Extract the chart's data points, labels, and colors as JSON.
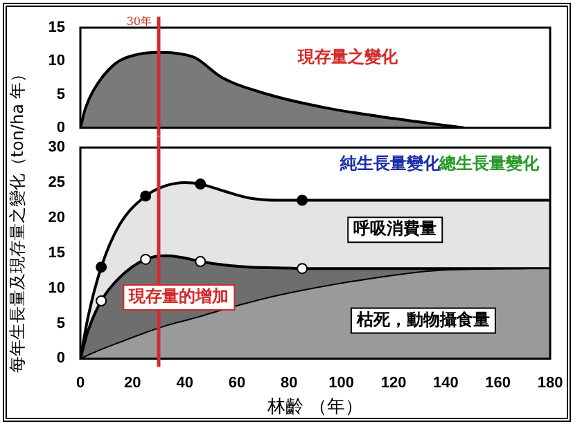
{
  "chart_data": [
    {
      "type": "area",
      "xlim": [
        0,
        180
      ],
      "ylim": [
        0,
        15
      ],
      "yticks": [
        0,
        5,
        10,
        15
      ],
      "tick_labels": "y",
      "grid": false,
      "legend": false,
      "series": [
        {
          "color": "#7a7a7a",
          "x": [
            0,
            2,
            5,
            13,
            22,
            30,
            36,
            44,
            54,
            72,
            94,
            120,
            147
          ],
          "values": [
            0,
            3,
            5.6,
            9.5,
            11,
            11.3,
            11.2,
            10.5,
            7.6,
            5,
            3,
            1.4,
            0
          ]
        }
      ],
      "ref_lines": [
        {
          "axis": "x",
          "value": 30,
          "label": "30年",
          "color": "#d22b2b"
        }
      ],
      "annotations": [
        "現存量之變化"
      ]
    },
    {
      "type": "area",
      "xlabel": "林齡 （年）",
      "ylabel": "每年生長量及現存量之變化（ton/ha 年）",
      "xlim": [
        0,
        180
      ],
      "xticks": [
        0,
        20,
        40,
        60,
        80,
        100,
        120,
        140,
        160,
        180
      ],
      "ylim": [
        0,
        30
      ],
      "yticks": [
        0,
        5,
        10,
        15,
        20,
        25,
        30
      ],
      "grid": false,
      "legend": false,
      "series": [
        {
          "color": "#9a9a9a",
          "x": [
            0,
            3,
            8,
            15,
            25,
            33,
            40,
            46,
            55,
            65,
            76,
            85,
            110,
            140,
            180
          ],
          "values": [
            0,
            0.5,
            1.3,
            2.3,
            3.7,
            4.7,
            5.4,
            6,
            7,
            8,
            9,
            9.7,
            11.3,
            12.6,
            12.8
          ]
        },
        {
          "color": "#6e6e6e",
          "x": [
            0,
            3,
            8,
            15,
            25,
            33,
            40,
            46,
            55,
            65,
            76,
            85,
            110,
            140,
            180
          ],
          "values": [
            0,
            4,
            8.2,
            11.5,
            14.1,
            14.6,
            14.3,
            13.8,
            13.3,
            13,
            12.9,
            12.8,
            12.8,
            12.8,
            12.8
          ]
        },
        {
          "color": "#e4e4e4",
          "x": [
            0,
            3,
            8,
            15,
            25,
            33,
            40,
            46,
            55,
            65,
            76,
            85,
            110,
            140,
            180
          ],
          "values": [
            0,
            6,
            13,
            19,
            23.1,
            24.6,
            25,
            24.8,
            23.8,
            22.8,
            22.5,
            22.5,
            22.5,
            22.5,
            22.5
          ]
        },
        {
          "type": "scatter",
          "marker": "circle",
          "color": "#000000",
          "x": [
            8,
            25,
            46,
            85
          ],
          "values": [
            13,
            23.1,
            24.8,
            22.5
          ]
        },
        {
          "type": "scatter",
          "marker": "circle",
          "color": "#ffffff",
          "x": [
            8,
            25,
            46,
            85
          ],
          "values": [
            8.2,
            14.1,
            13.8,
            12.8
          ]
        }
      ],
      "ref_lines": [
        {
          "axis": "x",
          "value": 30,
          "color": "#d22b2b"
        }
      ],
      "annotations": [
        "純生長量變化",
        "總生長量變化",
        "呼吸消費量",
        "現存量的增加",
        "枯死，動物攝食量"
      ]
    }
  ]
}
